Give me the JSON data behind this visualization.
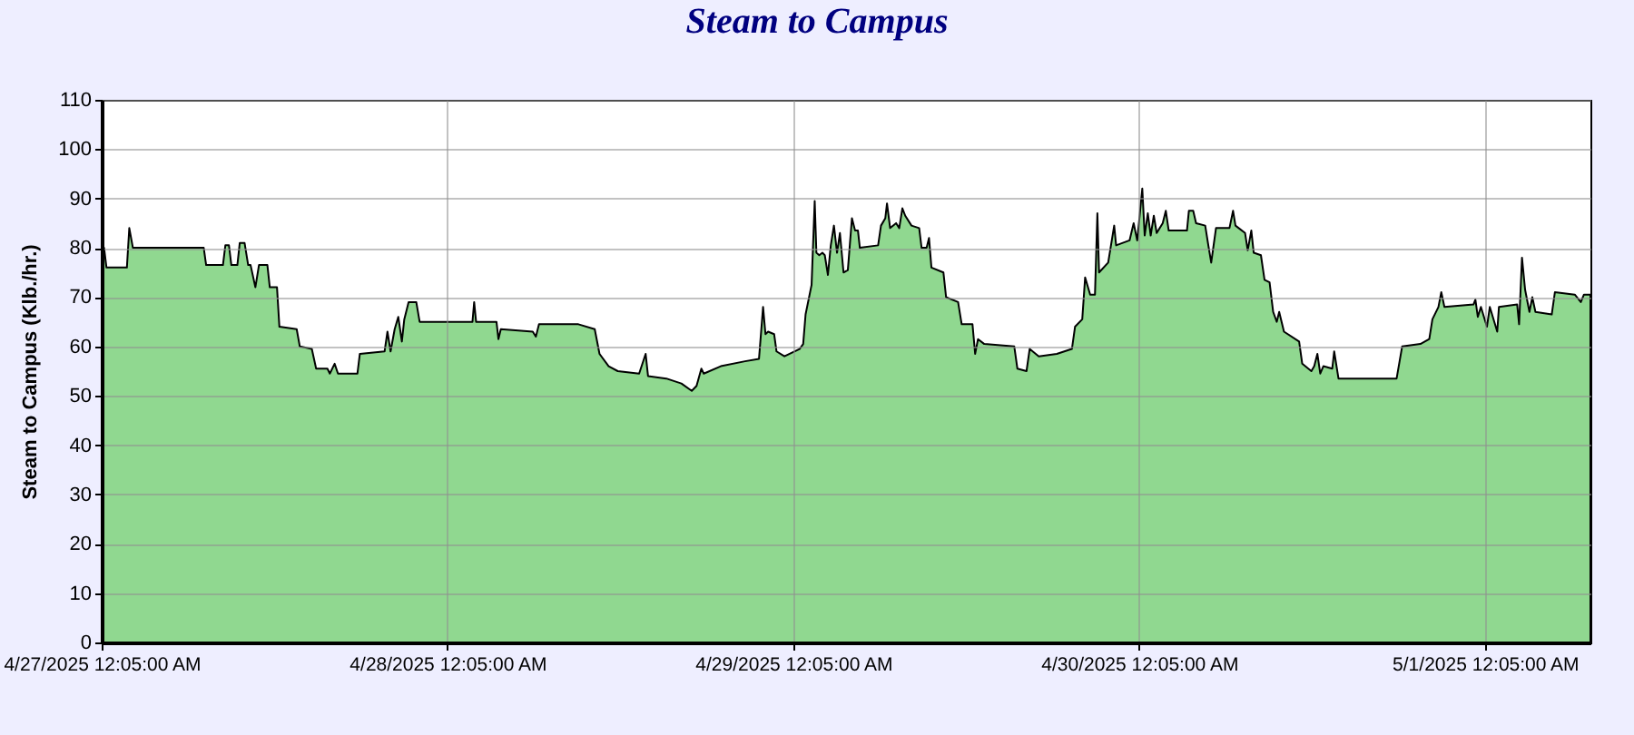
{
  "chart_data": {
    "type": "area",
    "title": "Steam to Campus",
    "ylabel": "Steam to Campus (Klb./hr.)",
    "x": [
      "2025-04-27T00:05",
      "2025-04-27T00:15",
      "2025-04-27T00:25",
      "2025-04-27T01:50",
      "2025-04-27T02:00",
      "2025-04-27T02:15",
      "2025-04-27T07:10",
      "2025-04-27T07:20",
      "2025-04-27T08:30",
      "2025-04-27T08:40",
      "2025-04-27T08:55",
      "2025-04-27T09:05",
      "2025-04-27T09:30",
      "2025-04-27T09:40",
      "2025-04-27T10:00",
      "2025-04-27T10:15",
      "2025-04-27T10:25",
      "2025-04-27T10:45",
      "2025-04-27T11:00",
      "2025-04-27T11:35",
      "2025-04-27T11:45",
      "2025-04-27T12:15",
      "2025-04-27T12:25",
      "2025-04-27T13:37",
      "2025-04-27T13:50",
      "2025-04-27T14:40",
      "2025-04-27T14:58",
      "2025-04-27T15:45",
      "2025-04-27T15:55",
      "2025-04-27T16:15",
      "2025-04-27T16:29",
      "2025-04-27T17:50",
      "2025-04-27T18:00",
      "2025-04-27T19:43",
      "2025-04-27T19:55",
      "2025-04-27T20:08",
      "2025-04-27T20:25",
      "2025-04-27T20:40",
      "2025-04-27T20:55",
      "2025-04-27T21:05",
      "2025-04-27T21:23",
      "2025-04-27T21:55",
      "2025-04-27T22:09",
      "2025-04-28T01:49",
      "2025-04-28T01:56",
      "2025-04-28T02:04",
      "2025-04-28T03:29",
      "2025-04-28T03:37",
      "2025-04-28T03:47",
      "2025-04-28T06:00",
      "2025-04-28T06:13",
      "2025-04-28T06:26",
      "2025-04-28T09:10",
      "2025-04-28T10:18",
      "2025-04-28T10:38",
      "2025-04-28T11:16",
      "2025-04-28T11:54",
      "2025-04-28T13:23",
      "2025-04-28T13:50",
      "2025-04-28T14:00",
      "2025-04-28T15:16",
      "2025-04-28T16:19",
      "2025-04-28T17:02",
      "2025-04-28T17:22",
      "2025-04-28T17:42",
      "2025-04-28T17:52",
      "2025-04-28T19:03",
      "2025-04-28T20:44",
      "2025-04-28T21:42",
      "2025-04-28T21:59",
      "2025-04-28T22:09",
      "2025-04-28T22:20",
      "2025-04-28T22:45",
      "2025-04-28T22:55",
      "2025-04-28T23:28",
      "2025-04-29T00:31",
      "2025-04-29T00:46",
      "2025-04-29T00:56",
      "2025-04-29T01:21",
      "2025-04-29T01:34",
      "2025-04-29T01:41",
      "2025-04-29T01:53",
      "2025-04-29T02:06",
      "2025-04-29T02:16",
      "2025-04-29T02:29",
      "2025-04-29T02:41",
      "2025-04-29T02:54",
      "2025-04-29T03:07",
      "2025-04-29T03:19",
      "2025-04-29T03:34",
      "2025-04-29T03:52",
      "2025-04-29T04:09",
      "2025-04-29T04:22",
      "2025-04-29T04:34",
      "2025-04-29T04:42",
      "2025-04-29T05:58",
      "2025-04-29T06:10",
      "2025-04-29T06:28",
      "2025-04-29T06:35",
      "2025-04-29T06:48",
      "2025-04-29T07:13",
      "2025-04-29T07:26",
      "2025-04-29T07:39",
      "2025-04-29T07:51",
      "2025-04-29T08:17",
      "2025-04-29T08:49",
      "2025-04-29T08:59",
      "2025-04-29T09:20",
      "2025-04-29T09:30",
      "2025-04-29T09:40",
      "2025-04-29T10:30",
      "2025-04-29T10:41",
      "2025-04-29T11:31",
      "2025-04-29T11:46",
      "2025-04-29T12:31",
      "2025-04-29T12:42",
      "2025-04-29T12:54",
      "2025-04-29T13:20",
      "2025-04-29T15:25",
      "2025-04-29T15:38",
      "2025-04-29T16:16",
      "2025-04-29T16:29",
      "2025-04-29T17:07",
      "2025-04-29T18:22",
      "2025-04-29T19:25",
      "2025-04-29T19:38",
      "2025-04-29T20:08",
      "2025-04-29T20:20",
      "2025-04-29T20:41",
      "2025-04-29T21:01",
      "2025-04-29T21:11",
      "2025-04-29T21:18",
      "2025-04-29T21:56",
      "2025-04-29T22:21",
      "2025-04-29T22:29",
      "2025-04-29T23:25",
      "2025-04-29T23:42",
      "2025-04-29T23:57",
      "2025-04-30T00:18",
      "2025-04-30T00:28",
      "2025-04-30T00:41",
      "2025-04-30T00:53",
      "2025-04-30T01:06",
      "2025-04-30T01:18",
      "2025-04-30T01:43",
      "2025-04-30T01:56",
      "2025-04-30T02:08",
      "2025-04-30T03:24",
      "2025-04-30T03:32",
      "2025-04-30T03:50",
      "2025-04-30T04:02",
      "2025-04-30T04:40",
      "2025-04-30T04:53",
      "2025-04-30T05:05",
      "2025-04-30T05:25",
      "2025-04-30T06:21",
      "2025-04-30T06:36",
      "2025-04-30T06:46",
      "2025-04-30T07:26",
      "2025-04-30T07:37",
      "2025-04-30T07:52",
      "2025-04-30T08:02",
      "2025-04-30T08:32",
      "2025-04-30T08:47",
      "2025-04-30T09:08",
      "2025-04-30T09:23",
      "2025-04-30T09:38",
      "2025-04-30T09:48",
      "2025-04-30T10:08",
      "2025-04-30T11:11",
      "2025-04-30T11:24",
      "2025-04-30T12:02",
      "2025-04-30T12:14",
      "2025-04-30T12:27",
      "2025-04-30T12:39",
      "2025-04-30T12:52",
      "2025-04-30T13:29",
      "2025-04-30T13:37",
      "2025-04-30T13:55",
      "2025-04-30T17:57",
      "2025-04-30T18:20",
      "2025-04-30T19:36",
      "2025-04-30T20:13",
      "2025-04-30T20:26",
      "2025-04-30T20:51",
      "2025-04-30T21:03",
      "2025-04-30T21:16",
      "2025-04-30T23:17",
      "2025-04-30T23:25",
      "2025-04-30T23:35",
      "2025-04-30T23:48",
      "2025-05-01T00:13",
      "2025-05-01T00:25",
      "2025-05-01T00:56",
      "2025-05-01T01:03",
      "2025-05-01T02:19",
      "2025-05-01T02:27",
      "2025-05-01T02:39",
      "2025-05-01T02:52",
      "2025-05-01T03:10",
      "2025-05-01T03:22",
      "2025-05-01T03:35",
      "2025-05-01T04:43",
      "2025-05-01T04:56",
      "2025-05-01T06:19",
      "2025-05-01T06:44",
      "2025-05-01T06:57",
      "2025-05-01T07:24"
    ],
    "series": [
      {
        "color": "#90d890",
        "values": [
          79,
          80,
          76,
          76,
          84,
          80,
          80,
          76.5,
          76.5,
          80.5,
          80.5,
          76.5,
          76.5,
          81,
          81,
          76.5,
          76.5,
          72,
          76.5,
          76.5,
          72,
          72,
          64,
          63.5,
          60,
          59.5,
          55.5,
          55.5,
          54.5,
          56.5,
          54.5,
          54.5,
          58.5,
          59,
          63,
          59,
          63.5,
          66,
          61,
          65.5,
          69,
          69,
          65,
          65,
          69,
          65,
          65,
          61.5,
          63.5,
          63,
          62,
          64.5,
          64.5,
          63.5,
          58.5,
          56,
          55,
          54.5,
          58.5,
          54,
          53.5,
          52.5,
          51,
          52,
          55.5,
          54.5,
          56,
          57,
          57.5,
          68,
          62.5,
          63,
          62.5,
          59,
          58,
          59.5,
          60.5,
          66.5,
          72.5,
          89.5,
          79,
          78.5,
          79,
          78.5,
          74.5,
          80.5,
          84.5,
          79,
          83,
          75,
          75.5,
          86,
          83.5,
          83.5,
          80,
          80.5,
          84.5,
          86,
          89,
          84,
          85,
          84,
          88,
          86.5,
          84.5,
          84,
          80,
          80,
          82,
          76,
          75,
          70,
          69,
          64.5,
          64.5,
          58.5,
          61.5,
          60.5,
          60,
          55.5,
          55,
          59.5,
          58,
          58.5,
          59.5,
          64,
          65.5,
          74,
          70.5,
          70.5,
          87,
          75,
          77,
          84.5,
          80.5,
          81.5,
          85,
          81.5,
          92,
          82.5,
          87,
          82.5,
          86.5,
          83,
          85,
          87.5,
          83.5,
          83.5,
          87.5,
          87.5,
          85,
          84.5,
          80.5,
          77,
          84,
          84,
          87.5,
          84.5,
          83,
          79.5,
          83.5,
          79,
          78.5,
          73.5,
          73,
          67,
          65,
          67,
          63,
          61,
          56.5,
          55,
          56,
          58.5,
          54.5,
          56,
          55.5,
          59,
          53.5,
          53.5,
          60,
          60.5,
          61.5,
          65.5,
          68,
          71,
          68,
          68.5,
          69.5,
          66,
          68,
          64,
          68,
          63,
          68,
          68.5,
          64.5,
          78,
          71.5,
          67,
          70,
          67,
          66.5,
          71,
          70.5,
          69,
          70.5,
          70.5
        ]
      }
    ],
    "xlim": [
      "2025-04-27T00:05",
      "2025-05-01T07:24"
    ],
    "xticks": [
      {
        "value": "2025-04-27T00:05",
        "label": "4/27/2025 12:05:00 AM"
      },
      {
        "value": "2025-04-28T00:05",
        "label": "4/28/2025 12:05:00 AM"
      },
      {
        "value": "2025-04-29T00:05",
        "label": "4/29/2025 12:05:00 AM"
      },
      {
        "value": "2025-04-30T00:05",
        "label": "4/30/2025 12:05:00 AM"
      },
      {
        "value": "2025-05-01T00:05",
        "label": "5/1/2025 12:05:00 AM"
      }
    ],
    "ylim": [
      0,
      110
    ],
    "yticks": [
      0,
      10,
      20,
      30,
      40,
      50,
      60,
      70,
      80,
      90,
      100,
      110
    ],
    "grid": true
  }
}
